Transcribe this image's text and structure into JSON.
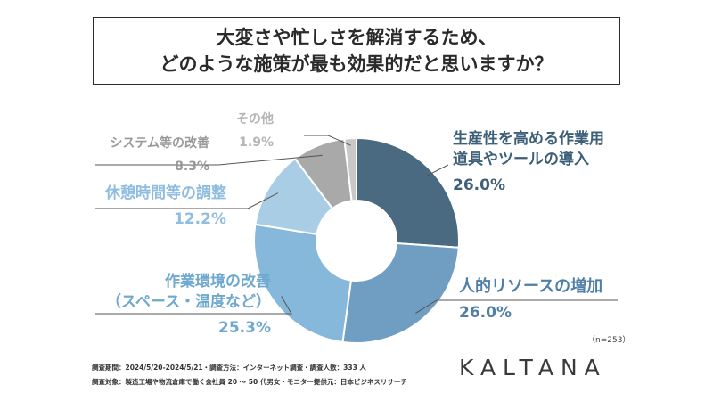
{
  "title": {
    "line1": "大変さや忙しさを解消するため、",
    "line2": "どのような施策が最も効果的だと思いますか？"
  },
  "chart_data": {
    "type": "pie",
    "donut": true,
    "slices": [
      {
        "label_lines": [
          "生産性を高める作業用",
          "道具やツールの導入"
        ],
        "value": 26.0,
        "value_label": "26.0%",
        "color": "#4a6a82",
        "label_color": "#3d5f78"
      },
      {
        "label_lines": [
          "人的リソースの増加"
        ],
        "value": 26.0,
        "value_label": "26.0%",
        "color": "#6f9ec2",
        "label_color": "#4f7fa6"
      },
      {
        "label_lines": [
          "作業環境の改善",
          "（スペース・温度など）"
        ],
        "value": 25.3,
        "value_label": "25.3%",
        "color": "#85b8da",
        "label_color": "#6ea8cf"
      },
      {
        "label_lines": [
          "休憩時間等の調整"
        ],
        "value": 12.2,
        "value_label": "12.2%",
        "color": "#aacde6",
        "label_color": "#8fbde0"
      },
      {
        "label_lines": [
          "システム等の改善"
        ],
        "value": 8.3,
        "value_label": "8.3%",
        "color": "#a9a9a9",
        "label_color": "#999999"
      },
      {
        "label_lines": [
          "その他"
        ],
        "value": 1.9,
        "value_label": "1.9%",
        "color": "#c8c8c8",
        "label_color": "#b5b5b5"
      }
    ]
  },
  "sample_note": "（n=253）",
  "footer": {
    "line1": "調査期間：2024/5/20-2024/5/21・調査方法：インターネット調査・調査人数：333 人",
    "line2": "調査対象：製造工場や物流倉庫で働く会社員 20 ～ 50 代男女・モニター提供元：日本ビジネスリサーチ"
  },
  "logo": "KALTANA"
}
